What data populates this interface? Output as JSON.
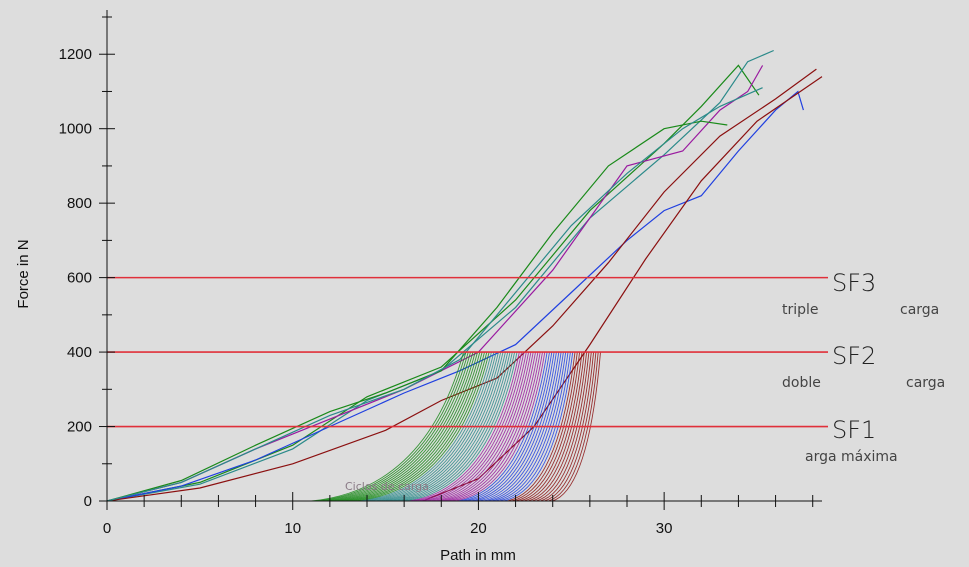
{
  "chart_data": {
    "type": "line",
    "xlabel": "Path in mm",
    "ylabel": "Force in N",
    "xlim": [
      0,
      38.5
    ],
    "ylim": [
      0,
      1300
    ],
    "x_ticks": [
      0,
      10,
      20,
      30
    ],
    "x_tick_labels": [
      "0",
      "10",
      "20",
      "30"
    ],
    "y_ticks": [
      0,
      200,
      400,
      600,
      800,
      1000,
      1200
    ],
    "y_tick_labels": [
      "0",
      "200",
      "400",
      "600",
      "800",
      "1000",
      "1200"
    ],
    "grid": false,
    "legend": "none",
    "reference_lines": [
      {
        "name": "SF3",
        "subtitle_left": "triple",
        "subtitle_right": "carga",
        "y": 600,
        "color": "#e0303a"
      },
      {
        "name": "SF2",
        "subtitle_left": "doble",
        "subtitle_right": "carga",
        "y": 400,
        "color": "#e0303a"
      },
      {
        "name": "SF1",
        "subtitle_left": "",
        "subtitle_right": "arga máxima",
        "y": 200,
        "color": "#e0303a"
      }
    ],
    "faint_annotation": "Ciclos de carga",
    "series": [
      {
        "color": "#1a8a1a",
        "x": [
          0,
          5,
          10,
          14,
          18,
          22,
          26,
          30,
          32,
          34,
          35.1
        ],
        "y": [
          0,
          50,
          150,
          280,
          360,
          540,
          780,
          960,
          1060,
          1170,
          1090
        ]
      },
      {
        "color": "#2b8a8a",
        "x": [
          0,
          5,
          10,
          14,
          18,
          22,
          26,
          30,
          33,
          34.5,
          35.9
        ],
        "y": [
          0,
          45,
          140,
          270,
          350,
          520,
          760,
          930,
          1070,
          1180,
          1210
        ]
      },
      {
        "color": "#9a1aa0",
        "x": [
          0,
          4,
          8,
          12,
          16,
          20,
          24,
          28,
          31,
          33,
          34.5,
          35.3
        ],
        "y": [
          0,
          50,
          140,
          220,
          300,
          400,
          620,
          900,
          940,
          1050,
          1100,
          1170
        ]
      },
      {
        "color": "#2040e0",
        "x": [
          0,
          4,
          8,
          12,
          16,
          19,
          22,
          25,
          28,
          30,
          32,
          34,
          36,
          37.2,
          37.5
        ],
        "y": [
          0,
          40,
          110,
          200,
          290,
          350,
          420,
          560,
          700,
          780,
          820,
          940,
          1050,
          1100,
          1050
        ]
      },
      {
        "color": "#8b1010",
        "x": [
          0,
          5,
          10,
          15,
          18,
          21,
          24,
          27,
          30,
          33,
          36,
          38.2
        ],
        "y": [
          0,
          35,
          100,
          190,
          270,
          330,
          470,
          640,
          830,
          980,
          1080,
          1160
        ]
      },
      {
        "color": "#8b1010",
        "x": [
          17,
          20,
          23,
          26,
          29,
          32,
          35,
          38.5
        ],
        "y": [
          0,
          60,
          200,
          420,
          650,
          860,
          1020,
          1140
        ]
      },
      {
        "color": "#1a8a1a",
        "x": [
          0,
          4,
          8,
          12,
          15,
          18,
          21,
          24,
          27,
          30,
          32,
          33.4
        ],
        "y": [
          0,
          55,
          150,
          240,
          290,
          350,
          520,
          720,
          900,
          1000,
          1020,
          1010
        ]
      },
      {
        "color": "#2b8a8a",
        "x": [
          0,
          4,
          8,
          12,
          16,
          19,
          22,
          25,
          28,
          31,
          33,
          35.3
        ],
        "y": [
          0,
          50,
          140,
          230,
          300,
          380,
          560,
          740,
          880,
          1000,
          1060,
          1110
        ]
      }
    ]
  }
}
